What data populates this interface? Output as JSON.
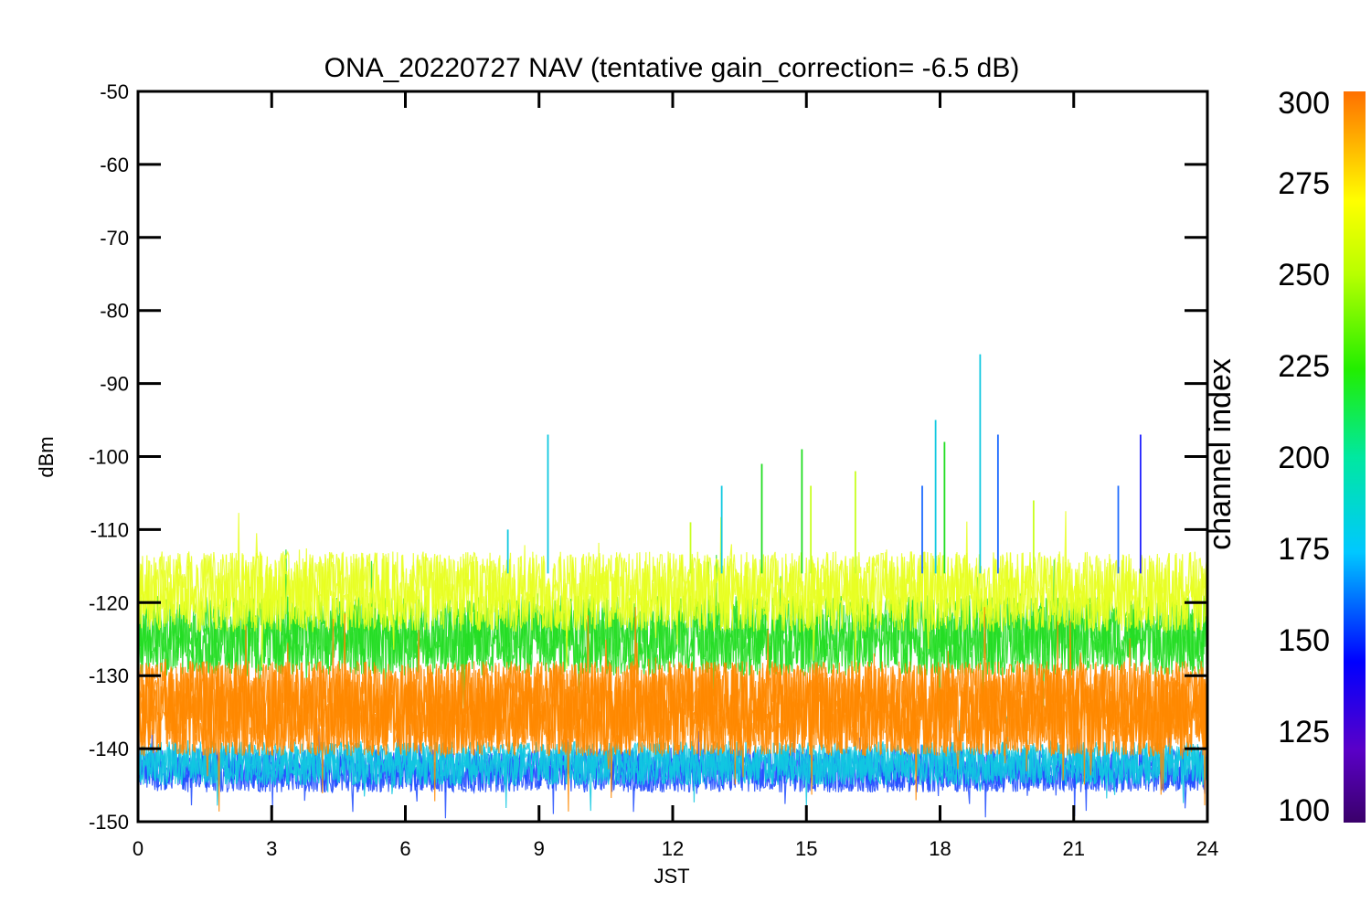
{
  "chart_data": {
    "type": "line",
    "title": "ONA_20220727 NAV (tentative gain_correction= -6.5 dB)",
    "xlabel": "JST",
    "ylabel": "dBm",
    "xlim": [
      0,
      24
    ],
    "ylim": [
      -150,
      -50
    ],
    "x_ticks": [
      0,
      3,
      6,
      9,
      12,
      15,
      18,
      21,
      24
    ],
    "y_ticks": [
      -50,
      -60,
      -70,
      -80,
      -90,
      -100,
      -110,
      -120,
      -130,
      -140,
      -150
    ],
    "grid": false,
    "colorbar": {
      "title": "channel index",
      "range": [
        100,
        300
      ],
      "ticks": [
        300,
        275,
        250,
        225,
        200,
        175,
        150,
        125,
        100
      ],
      "colormap": "rainbow"
    },
    "series": [
      {
        "channel_range": [
          100,
          160
        ],
        "color": "#1e4bff",
        "band_low": -146,
        "band_high": -140
      },
      {
        "channel_range": [
          160,
          200
        ],
        "color": "#10c8e0",
        "band_low": -145,
        "band_high": -139
      },
      {
        "channel_range": [
          200,
          240
        ],
        "color": "#22dd22",
        "band_low": -130,
        "band_high": -119
      },
      {
        "channel_range": [
          240,
          275
        ],
        "color": "#e8ff20",
        "band_low": -124,
        "band_high": -113
      },
      {
        "channel_range": [
          275,
          300
        ],
        "color": "#ff8800",
        "band_low": -141,
        "band_high": -128
      }
    ],
    "spikes": [
      {
        "x": 9.2,
        "y": -97,
        "channel": 175
      },
      {
        "x": 8.3,
        "y": -110,
        "channel": 175
      },
      {
        "x": 12.4,
        "y": -109,
        "channel": 250
      },
      {
        "x": 13.1,
        "y": -104,
        "channel": 175
      },
      {
        "x": 14.0,
        "y": -101,
        "channel": 230
      },
      {
        "x": 14.9,
        "y": -99,
        "channel": 225
      },
      {
        "x": 15.1,
        "y": -104,
        "channel": 250
      },
      {
        "x": 16.1,
        "y": -102,
        "channel": 240
      },
      {
        "x": 17.6,
        "y": -104,
        "channel": 150
      },
      {
        "x": 17.9,
        "y": -95,
        "channel": 175
      },
      {
        "x": 18.1,
        "y": -98,
        "channel": 200
      },
      {
        "x": 18.9,
        "y": -86,
        "channel": 185
      },
      {
        "x": 19.3,
        "y": -97,
        "channel": 150
      },
      {
        "x": 20.1,
        "y": -106,
        "channel": 250
      },
      {
        "x": 22.0,
        "y": -104,
        "channel": 150
      },
      {
        "x": 22.5,
        "y": -97,
        "channel": 130
      }
    ]
  }
}
